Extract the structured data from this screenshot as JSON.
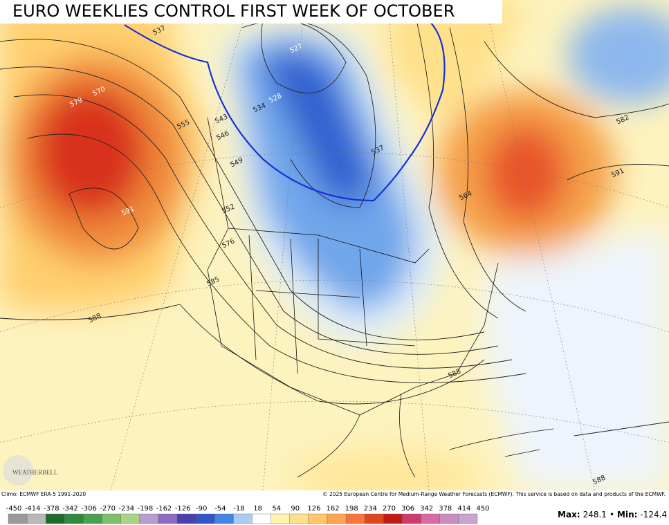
{
  "title": "EURO WEEKLIES CONTROL FIRST WEEK OF OCTOBER",
  "contour_labels": [
    "537",
    "527",
    "528",
    "534",
    "543",
    "546",
    "549",
    "552",
    "555",
    "570",
    "579",
    "591",
    "576",
    "585",
    "588",
    "582",
    "591",
    "564",
    "537",
    "588",
    "588"
  ],
  "logo": "WEATHERBELL",
  "climo": "Climo: ECMWF ERA-5 1991-2020",
  "copyright": "© 2025 European Centre for Medium-Range Weather Forecasts (ECMWF). This service is based on data and products of the ECMWF.",
  "colorbar": {
    "labels": [
      -450,
      -414,
      -378,
      -342,
      -306,
      -270,
      -234,
      -198,
      -162,
      -126,
      -90,
      -54,
      -18,
      18,
      54,
      90,
      126,
      162,
      198,
      234,
      270,
      306,
      342,
      378,
      414,
      450
    ],
    "colors": [
      "#9a9a9a",
      "#b8b8b8",
      "#1e6b2f",
      "#2f8a3e",
      "#4aa04f",
      "#7cbf6a",
      "#a8d48a",
      "#b79bd1",
      "#8d6cc0",
      "#4b3fae",
      "#2f55c8",
      "#3f86e0",
      "#a9cdf2",
      "#ffffff",
      "#fff3b0",
      "#ffe08a",
      "#ffc66a",
      "#ffa552",
      "#f7753a",
      "#e0451f",
      "#c21a14",
      "#cf3a6d",
      "#d86aa6",
      "#c98bc0",
      "#c9a5cd"
    ]
  },
  "stats": {
    "max_label": "Max:",
    "max": 248.1,
    "separator": "•",
    "min_label": "Min:",
    "min": -124.4
  }
}
